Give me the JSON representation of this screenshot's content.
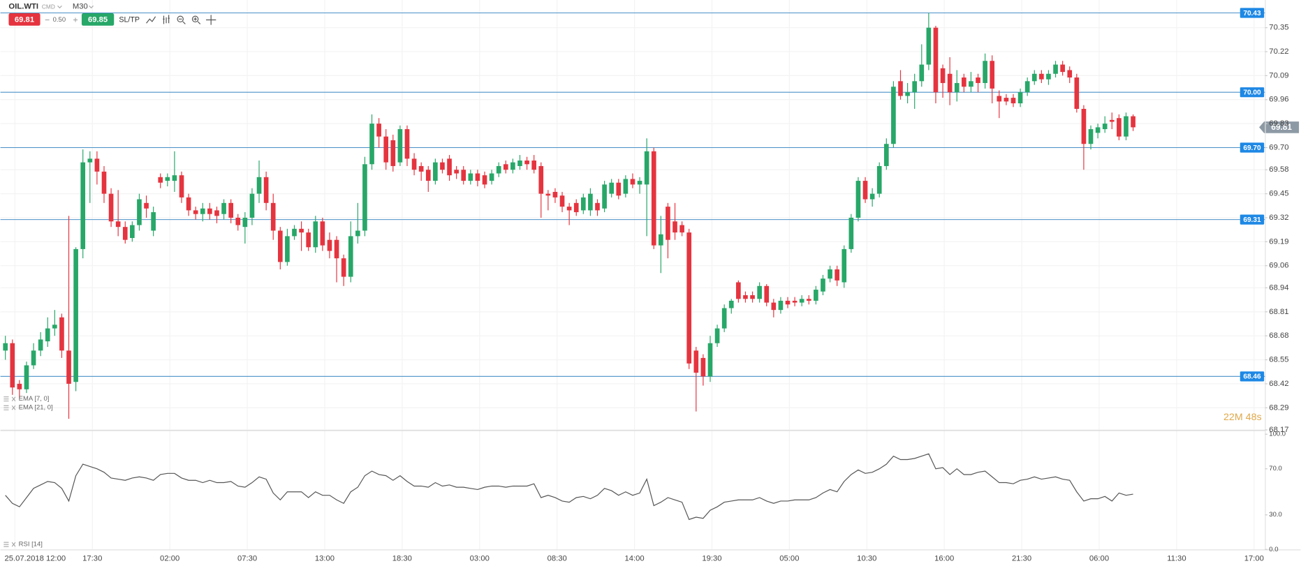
{
  "toolbar": {
    "symbol": "OIL.WTI",
    "market": "CMD",
    "timeframe": "M30",
    "sell": "69.81",
    "spread": "0.50",
    "buy": "69.85",
    "sltp": "SL/TP"
  },
  "chart_data": [
    {
      "type": "candlestick",
      "up_color": "#27a768",
      "down_color": "#e5343f",
      "ylim": [
        68.16,
        70.5
      ],
      "yticks": [
        68.17,
        68.29,
        68.42,
        68.55,
        68.68,
        68.81,
        68.94,
        69.06,
        69.19,
        69.32,
        69.45,
        69.58,
        {
          "value": 69.7,
          "label": "69.70"
        },
        69.83,
        69.96,
        70.09,
        70.22,
        70.35
      ],
      "grid": true,
      "levels": [
        70.43,
        {
          "value": 70,
          "label": "70.00"
        },
        {
          "value": 69.7,
          "label": "69.70"
        },
        69.31,
        68.46
      ],
      "level_color": "#4a90c8",
      "last_price": 69.81,
      "timer": "22M 48s",
      "indicators": [
        "EMA [7, 0]",
        "EMA [21, 0]"
      ],
      "xtick_labels": [
        "25.07.2018 12:00",
        "17:30",
        "02:00",
        "07:30",
        "13:00",
        "18:30",
        "03:00",
        "08:30",
        "14:00",
        "19:30",
        "05:00",
        "10:30",
        "16:00",
        "21:30",
        "06:00",
        "11:30",
        "17:00"
      ],
      "open": [
        68.6,
        68.64,
        68.42,
        68.39,
        68.52,
        68.6,
        68.65,
        68.72,
        68.78,
        68.6,
        68.43,
        69.15,
        69.62,
        69.64,
        69.57,
        69.45,
        69.3,
        69.27,
        69.21,
        69.28,
        69.4,
        69.25,
        69.54,
        69.52,
        69.52,
        69.55,
        69.43,
        69.36,
        69.34,
        69.37,
        69.36,
        69.34,
        69.4,
        69.32,
        69.27,
        69.32,
        69.45,
        69.54,
        69.4,
        69.25,
        69.08,
        69.22,
        69.26,
        69.24,
        69.16,
        69.3,
        69.2,
        69.2,
        69.1,
        69.0,
        69.22,
        69.25,
        69.61,
        69.83,
        69.76,
        69.74,
        69.62,
        69.8,
        69.64,
        69.6,
        69.58,
        69.52,
        69.62,
        69.64,
        69.58,
        69.58,
        69.52,
        69.56,
        69.55,
        69.52,
        69.56,
        69.61,
        69.58,
        69.6,
        69.63,
        69.63,
        69.6,
        69.45,
        69.46,
        69.44,
        69.38,
        69.4,
        69.36,
        69.36,
        69.4,
        69.37,
        69.45,
        69.51,
        69.45,
        69.53,
        69.5,
        69.5,
        69.68,
        69.17,
        69.38,
        69.3,
        69.28,
        69.24,
        68.6,
        68.56,
        68.46,
        68.64,
        68.72,
        68.83,
        68.97,
        68.9,
        68.9,
        68.88,
        68.95,
        68.86,
        68.82,
        68.87,
        68.87,
        68.86,
        68.88,
        68.87,
        68.92,
        68.99,
        69.04,
        68.97,
        69.15,
        69.32,
        69.52,
        69.42,
        69.45,
        69.6,
        69.72,
        70.06,
        69.98,
        70.0,
        70.06,
        70.15,
        70.35,
        70.13,
        70.1,
        70.0,
        70.08,
        70.03,
        70.08,
        70.05,
        70.17,
        69.98,
        69.97,
        69.97,
        69.94,
        70.0,
        70.06,
        70.1,
        70.07,
        70.1,
        70.15,
        70.12,
        70.08,
        69.91,
        69.72,
        69.78,
        69.8,
        69.85,
        69.86,
        69.76,
        69.87
      ],
      "high": [
        68.68,
        68.66,
        68.44,
        68.54,
        68.64,
        68.7,
        68.78,
        68.82,
        68.8,
        69.33,
        69.16,
        69.69,
        69.68,
        69.68,
        69.6,
        69.48,
        69.47,
        69.3,
        69.3,
        69.45,
        69.44,
        69.38,
        69.56,
        69.56,
        69.68,
        69.57,
        69.45,
        69.38,
        69.4,
        69.4,
        69.38,
        69.42,
        69.42,
        69.34,
        69.35,
        69.48,
        69.63,
        69.57,
        69.45,
        69.27,
        69.26,
        69.28,
        69.3,
        69.26,
        69.33,
        69.32,
        69.24,
        69.22,
        69.12,
        69.3,
        69.4,
        69.65,
        69.88,
        69.86,
        69.8,
        69.77,
        69.82,
        69.82,
        69.67,
        69.62,
        69.6,
        69.64,
        69.64,
        69.66,
        69.6,
        69.6,
        69.58,
        69.58,
        69.57,
        69.58,
        69.62,
        69.63,
        69.64,
        69.66,
        69.65,
        69.66,
        69.62,
        69.47,
        69.48,
        69.46,
        69.4,
        69.42,
        69.45,
        69.48,
        69.42,
        69.52,
        69.53,
        69.53,
        69.55,
        69.56,
        69.54,
        69.75,
        69.7,
        69.33,
        69.4,
        69.4,
        69.3,
        69.26,
        68.62,
        68.58,
        68.68,
        68.74,
        68.85,
        68.88,
        68.98,
        68.92,
        68.92,
        68.97,
        68.96,
        68.88,
        68.89,
        68.89,
        68.89,
        68.9,
        68.9,
        68.95,
        69.01,
        69.06,
        69.06,
        69.17,
        69.34,
        69.54,
        69.54,
        69.48,
        69.62,
        69.75,
        70.06,
        70.12,
        70.05,
        70.1,
        70.26,
        70.43,
        70.36,
        70.15,
        70.19,
        70.12,
        70.1,
        70.11,
        70.1,
        70.21,
        70.2,
        70.01,
        69.99,
        69.99,
        70.02,
        70.08,
        70.12,
        70.12,
        70.12,
        70.17,
        70.17,
        70.14,
        70.1,
        69.93,
        69.82,
        69.83,
        69.87,
        69.89,
        69.88,
        69.89,
        69.88
      ],
      "low": [
        68.55,
        68.36,
        68.34,
        68.37,
        68.5,
        68.57,
        68.62,
        68.68,
        68.56,
        68.23,
        68.38,
        69.1,
        69.4,
        69.5,
        69.4,
        69.27,
        69.22,
        69.18,
        69.19,
        69.25,
        69.32,
        69.22,
        69.48,
        69.49,
        69.46,
        69.4,
        69.33,
        69.31,
        69.3,
        69.31,
        69.29,
        69.31,
        69.29,
        69.25,
        69.18,
        69.28,
        69.4,
        69.36,
        69.2,
        69.04,
        69.06,
        69.2,
        69.14,
        69.14,
        69.13,
        69.14,
        69.1,
        68.97,
        68.95,
        68.97,
        69.18,
        69.22,
        69.58,
        69.7,
        69.58,
        69.57,
        69.6,
        69.6,
        69.55,
        69.52,
        69.46,
        69.5,
        69.56,
        69.52,
        69.53,
        69.5,
        69.5,
        69.49,
        69.48,
        69.5,
        69.54,
        69.56,
        69.56,
        69.58,
        69.58,
        69.56,
        69.32,
        69.36,
        69.4,
        69.35,
        69.28,
        69.33,
        69.34,
        69.33,
        69.33,
        69.35,
        69.43,
        69.42,
        69.43,
        69.48,
        69.45,
        69.22,
        69.15,
        69.02,
        69.1,
        69.2,
        69.22,
        68.5,
        68.27,
        68.41,
        68.43,
        68.62,
        68.7,
        68.8,
        68.86,
        68.86,
        68.86,
        68.86,
        68.84,
        68.78,
        68.8,
        68.83,
        68.84,
        68.84,
        68.85,
        68.85,
        68.9,
        68.97,
        68.95,
        68.94,
        69.13,
        69.3,
        69.4,
        69.38,
        69.43,
        69.58,
        69.7,
        69.96,
        69.94,
        69.91,
        70.03,
        70.12,
        69.94,
        69.97,
        69.93,
        69.95,
        70.0,
        70.0,
        70.0,
        70.02,
        69.94,
        69.86,
        69.93,
        69.92,
        69.92,
        69.98,
        70.04,
        70.05,
        70.04,
        70.08,
        70.09,
        70.05,
        69.89,
        69.58,
        69.69,
        69.75,
        69.78,
        69.8,
        69.74,
        69.74,
        69.79
      ],
      "close": [
        68.64,
        68.4,
        68.39,
        68.52,
        68.6,
        68.66,
        68.72,
        68.74,
        68.6,
        68.42,
        69.15,
        69.62,
        69.64,
        69.57,
        69.45,
        69.3,
        69.27,
        69.2,
        69.28,
        69.42,
        69.37,
        69.35,
        69.51,
        69.54,
        69.55,
        69.43,
        69.36,
        69.34,
        69.37,
        69.34,
        69.33,
        69.4,
        69.32,
        69.28,
        69.32,
        69.45,
        69.54,
        69.4,
        69.25,
        69.08,
        69.22,
        69.26,
        69.24,
        69.16,
        69.3,
        69.17,
        69.14,
        69.1,
        69.0,
        69.22,
        69.25,
        69.61,
        69.83,
        69.76,
        69.62,
        69.6,
        69.8,
        69.64,
        69.58,
        69.57,
        69.52,
        69.62,
        69.58,
        69.55,
        69.56,
        69.52,
        69.56,
        69.52,
        69.5,
        69.56,
        69.6,
        69.58,
        69.62,
        69.63,
        69.61,
        69.58,
        69.45,
        69.44,
        69.43,
        69.38,
        69.36,
        69.35,
        69.43,
        69.45,
        69.36,
        69.5,
        69.51,
        69.44,
        69.53,
        69.5,
        69.52,
        69.68,
        69.17,
        69.23,
        69.2,
        69.24,
        69.24,
        68.53,
        68.48,
        68.46,
        68.64,
        68.72,
        68.83,
        68.87,
        68.88,
        68.88,
        68.88,
        68.95,
        68.86,
        68.82,
        68.87,
        68.85,
        68.86,
        68.88,
        68.87,
        68.93,
        68.99,
        69.04,
        68.98,
        69.15,
        69.32,
        69.52,
        69.42,
        69.45,
        69.6,
        69.72,
        70.03,
        69.98,
        70.0,
        70.06,
        70.15,
        70.35,
        70.0,
        70.05,
        70.0,
        70.05,
        70.03,
        70.06,
        70.05,
        70.17,
        70.02,
        69.95,
        69.95,
        69.94,
        70.0,
        70.06,
        70.1,
        70.07,
        70.1,
        70.15,
        70.11,
        70.08,
        69.91,
        69.72,
        69.8,
        69.81,
        69.83,
        69.84,
        69.76,
        69.87,
        69.81
      ]
    },
    {
      "type": "line",
      "name": "RSI [14]",
      "color": "#555555",
      "ylim": [
        0,
        100
      ],
      "yticks": [
        {
          "value": 100,
          "label": "100.0"
        },
        {
          "value": 70,
          "label": "70.0"
        },
        {
          "value": 30,
          "label": "30.0"
        },
        {
          "value": 0,
          "label": "0.0"
        }
      ],
      "values": [
        47,
        40,
        37,
        45,
        53,
        56,
        59,
        58,
        53,
        42,
        64,
        74,
        72,
        70,
        67,
        62,
        61,
        60,
        62,
        63,
        62,
        60,
        65,
        66,
        66,
        62,
        60,
        60,
        58,
        60,
        58,
        58,
        59,
        55,
        54,
        58,
        63,
        61,
        49,
        43,
        50,
        50,
        50,
        45,
        50,
        47,
        47,
        43,
        40,
        50,
        54,
        64,
        68,
        65,
        64,
        60,
        64,
        59,
        55,
        55,
        54,
        58,
        55,
        56,
        54,
        54,
        53,
        52,
        54,
        55,
        55,
        54,
        55,
        55,
        55,
        57,
        45,
        47,
        45,
        42,
        41,
        45,
        46,
        44,
        47,
        53,
        51,
        47,
        50,
        47,
        49,
        61,
        38,
        41,
        45,
        43,
        41,
        26,
        28,
        27,
        34,
        37,
        41,
        42,
        43,
        43,
        43,
        45,
        42,
        40,
        42,
        42,
        43,
        43,
        43,
        45,
        49,
        52,
        50,
        59,
        65,
        69,
        66,
        67,
        70,
        74,
        81,
        78,
        78,
        79,
        81,
        83,
        70,
        71,
        65,
        70,
        65,
        65,
        67,
        68,
        63,
        58,
        58,
        57,
        60,
        61,
        63,
        61,
        62,
        63,
        61,
        60,
        50,
        42,
        44,
        44,
        46,
        42,
        49,
        47,
        48
      ]
    }
  ]
}
